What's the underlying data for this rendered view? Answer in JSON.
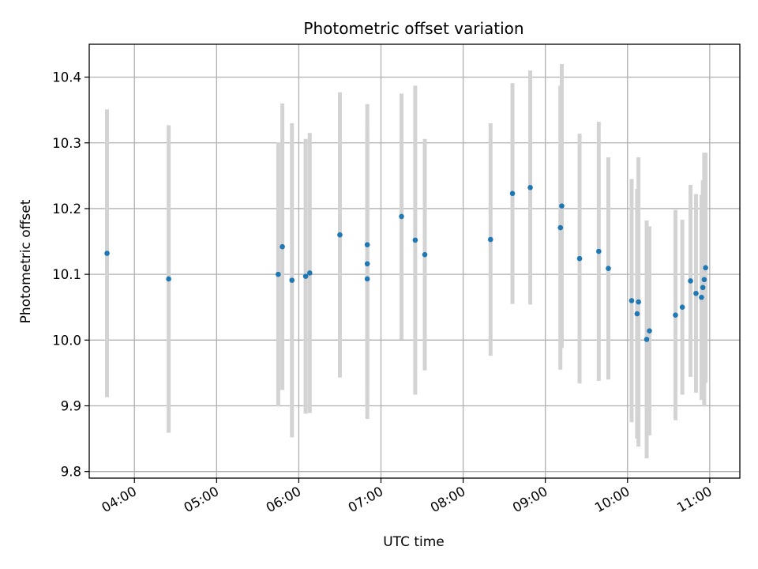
{
  "chart_data": {
    "type": "scatter",
    "title": "Photometric offset variation",
    "xlabel": "UTC time",
    "ylabel": "Photometric offset",
    "xlim": [
      "03:27",
      "11:22"
    ],
    "ylim": [
      9.79,
      10.45
    ],
    "x_ticks": [
      "04:00",
      "05:00",
      "06:00",
      "07:00",
      "08:00",
      "09:00",
      "10:00",
      "11:00"
    ],
    "y_ticks": [
      "9.8",
      "9.9",
      "10.0",
      "10.1",
      "10.2",
      "10.3",
      "10.4"
    ],
    "grid": true,
    "colors": {
      "points": "#1f77b4",
      "error_bars": "#d3d3d3"
    },
    "series": [
      {
        "x": [
          "03:40",
          "04:25",
          "05:45",
          "05:48",
          "05:55",
          "06:05",
          "06:08",
          "06:30",
          "06:50",
          "06:50",
          "06:50",
          "07:15",
          "07:25",
          "07:32",
          "08:20",
          "08:36",
          "08:49",
          "09:11",
          "09:12",
          "09:25",
          "09:39",
          "09:46",
          "10:03",
          "10:07",
          "10:08",
          "10:14",
          "10:16",
          "10:35",
          "10:40",
          "10:46",
          "10:50",
          "10:54",
          "10:55",
          "10:56",
          "10:57"
        ],
        "y": [
          10.132,
          10.093,
          10.1,
          10.142,
          10.091,
          10.097,
          10.102,
          10.16,
          10.145,
          10.116,
          10.093,
          10.188,
          10.152,
          10.13,
          10.153,
          10.223,
          10.232,
          10.171,
          10.204,
          10.124,
          10.135,
          10.109,
          10.06,
          10.04,
          10.058,
          10.001,
          10.014,
          10.038,
          10.05,
          10.09,
          10.071,
          10.065,
          10.08,
          10.092,
          10.11
        ],
        "yerr": [
          0.219,
          0.234,
          0.201,
          0.218,
          0.239,
          0.209,
          0.213,
          0.217,
          0.214,
          0.213,
          0.213,
          0.187,
          0.235,
          0.176,
          0.177,
          0.168,
          0.178,
          0.216,
          0.216,
          0.19,
          0.197,
          0.169,
          0.185,
          0.19,
          0.22,
          0.181,
          0.159,
          0.16,
          0.133,
          0.146,
          0.151,
          0.156,
          0.163,
          0.193,
          0.175
        ]
      }
    ]
  }
}
